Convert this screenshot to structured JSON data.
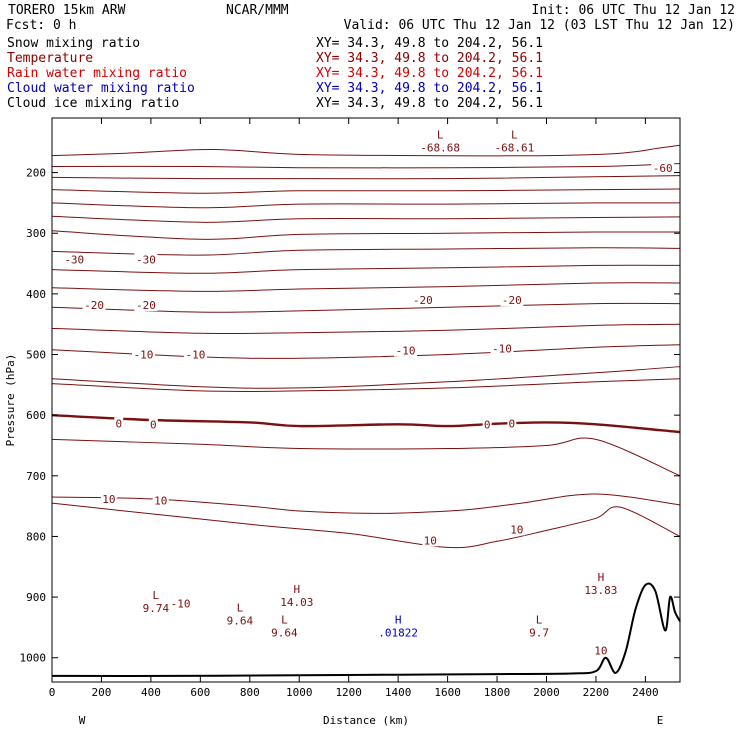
{
  "header": {
    "model": "TORERO  15km ARW",
    "center": "NCAR/MMM",
    "init": "Init: 06 UTC Thu 12 Jan 12",
    "fcst": "Fcst:    0 h",
    "valid": "Valid: 06 UTC Thu 12 Jan 12 (03 LST Thu 12 Jan 12)"
  },
  "fields": [
    {
      "name": "Snow mixing ratio",
      "xy": "XY=  34.3, 49.8 to 204.2, 56.1",
      "name_color": "#000000",
      "xy_color": "#000000"
    },
    {
      "name": "Temperature",
      "xy": "XY=  34.3, 49.8 to 204.2, 56.1",
      "name_color": "#8b0000",
      "xy_color": "#8b0000"
    },
    {
      "name": "Rain water mixing ratio",
      "xy": "XY=  34.3, 49.8 to 204.2, 56.1",
      "name_color": "#d40000",
      "xy_color": "#d40000"
    },
    {
      "name": "Cloud water mixing ratio",
      "xy": "XY=  34.3, 49.8 to 204.2, 56.1",
      "name_color": "#0000b4",
      "xy_color": "#0000b4"
    },
    {
      "name": "Cloud ice mixing ratio",
      "xy": "XY=  34.3, 49.8 to 204.2, 56.1",
      "name_color": "#000000",
      "xy_color": "#000000"
    }
  ],
  "colors": {
    "temperature": "#7a1010",
    "cloud_water": "#0000b4",
    "terrain": "#000000"
  },
  "chart_data": {
    "type": "line",
    "xlabel": "Distance (km)",
    "ylabel": "Pressure (hPa)",
    "xlim": [
      0,
      2540
    ],
    "ylim": [
      1040,
      110
    ],
    "xticks": [
      0,
      200,
      400,
      600,
      800,
      1000,
      1200,
      1400,
      1600,
      1800,
      2000,
      2200,
      2400
    ],
    "yticks": [
      200,
      300,
      400,
      500,
      600,
      700,
      800,
      900,
      1000
    ],
    "x_end_labels": {
      "left": "W",
      "right": "E"
    },
    "temperature_contours": [
      {
        "level": -65,
        "x": [
          0,
          300,
          650,
          1000,
          1500,
          2000,
          2300,
          2450,
          2540
        ],
        "p": [
          172,
          168,
          162,
          170,
          172,
          172,
          168,
          160,
          155
        ]
      },
      {
        "level": -60,
        "x": [
          0,
          600,
          1000,
          1600,
          2200,
          2540
        ],
        "p": [
          190,
          190,
          192,
          192,
          190,
          185
        ]
      },
      {
        "level": -55,
        "x": [
          0,
          600,
          1000,
          1600,
          2200,
          2540
        ],
        "p": [
          208,
          210,
          210,
          210,
          207,
          205
        ]
      },
      {
        "level": -50,
        "x": [
          0,
          600,
          1000,
          1600,
          2200,
          2540
        ],
        "p": [
          228,
          234,
          230,
          230,
          228,
          227
        ]
      },
      {
        "level": -45,
        "x": [
          0,
          600,
          1000,
          1600,
          2200,
          2540
        ],
        "p": [
          250,
          258,
          252,
          252,
          250,
          250
        ]
      },
      {
        "level": -40,
        "x": [
          0,
          600,
          1000,
          1600,
          2200,
          2540
        ],
        "p": [
          272,
          282,
          276,
          276,
          274,
          273
        ]
      },
      {
        "level": -35,
        "x": [
          0,
          600,
          1000,
          1600,
          2200,
          2540
        ],
        "p": [
          296,
          310,
          302,
          300,
          298,
          298
        ]
      },
      {
        "level": -30,
        "x": [
          0,
          600,
          1000,
          1600,
          2200,
          2540
        ],
        "p": [
          330,
          336,
          328,
          326,
          324,
          325
        ]
      },
      {
        "level": -25,
        "x": [
          0,
          600,
          1000,
          1600,
          2200,
          2540
        ],
        "p": [
          360,
          366,
          360,
          357,
          353,
          353
        ]
      },
      {
        "level": -20,
        "x": [
          0,
          600,
          1000,
          1600,
          2200,
          2540
        ],
        "p": [
          390,
          396,
          392,
          388,
          382,
          382
        ]
      },
      {
        "level": -15,
        "x": [
          0,
          600,
          1000,
          1600,
          2200,
          2540
        ],
        "p": [
          422,
          430,
          428,
          422,
          416,
          416
        ]
      },
      {
        "level": -10,
        "x": [
          0,
          600,
          1000,
          1600,
          2200,
          2540
        ],
        "p": [
          457,
          465,
          464,
          460,
          452,
          450
        ]
      },
      {
        "level": -5,
        "x": [
          0,
          600,
          1000,
          1600,
          2200,
          2540
        ],
        "p": [
          492,
          504,
          506,
          500,
          488,
          484
        ]
      },
      {
        "level": 0,
        "x": [
          0,
          600,
          1000,
          1600,
          2200,
          2540
        ],
        "p": [
          540,
          553,
          555,
          545,
          530,
          520
        ]
      },
      {
        "level": 5,
        "x": [
          0,
          600,
          1000,
          1600,
          2200,
          2540
        ],
        "p": [
          548,
          560,
          560,
          555,
          545,
          540
        ]
      },
      {
        "level": 10,
        "x": [
          0,
          400,
          800,
          1000,
          1400,
          1600,
          1800,
          2000,
          2200,
          2540
        ],
        "p": [
          600,
          608,
          612,
          618,
          615,
          618,
          614,
          612,
          615,
          628
        ]
      },
      {
        "level": 15,
        "x": [
          0,
          600,
          1000,
          1600,
          2000,
          2200,
          2540
        ],
        "p": [
          640,
          648,
          655,
          655,
          650,
          640,
          700
        ]
      },
      {
        "level": 20,
        "x": [
          0,
          400,
          800,
          1000,
          1300,
          1500,
          1700,
          1900,
          2200,
          2540
        ],
        "p": [
          735,
          738,
          750,
          758,
          762,
          760,
          755,
          745,
          730,
          748
        ]
      },
      {
        "level": 25,
        "x": [
          0,
          800,
          1200,
          1600,
          1800,
          2000,
          2200,
          2300,
          2540
        ],
        "p": [
          745,
          780,
          795,
          818,
          808,
          790,
          770,
          752,
          800
        ]
      }
    ],
    "labels": [
      {
        "text": "-60",
        "x": 2470,
        "p": 194
      },
      {
        "text": "-30",
        "x": 90,
        "p": 345
      },
      {
        "text": "-30",
        "x": 380,
        "p": 345
      },
      {
        "text": "-20",
        "x": 170,
        "p": 420
      },
      {
        "text": "-20",
        "x": 380,
        "p": 420
      },
      {
        "text": "-20",
        "x": 1500,
        "p": 412
      },
      {
        "text": "-20",
        "x": 1860,
        "p": 412
      },
      {
        "text": "-10",
        "x": 370,
        "p": 502
      },
      {
        "text": "-10",
        "x": 580,
        "p": 502
      },
      {
        "text": "-10",
        "x": 1430,
        "p": 495
      },
      {
        "text": "-10",
        "x": 1820,
        "p": 492
      },
      {
        "text": "0",
        "x": 270,
        "p": 615
      },
      {
        "text": "0",
        "x": 410,
        "p": 617
      },
      {
        "text": "0",
        "x": 1760,
        "p": 617
      },
      {
        "text": "0",
        "x": 1860,
        "p": 615
      },
      {
        "text": "10",
        "x": 230,
        "p": 740
      },
      {
        "text": "10",
        "x": 440,
        "p": 742
      },
      {
        "text": "10",
        "x": 1530,
        "p": 808
      },
      {
        "text": "10",
        "x": 1880,
        "p": 790
      },
      {
        "text": "-10",
        "x": 520,
        "p": 912
      },
      {
        "text": "10",
        "x": 2220,
        "p": 990
      }
    ],
    "extrema": [
      {
        "type": "L",
        "value": "-68.68",
        "x": 1570,
        "p": 150
      },
      {
        "type": "L",
        "value": "-68.61",
        "x": 1870,
        "p": 150
      },
      {
        "type": "H",
        "value": "13.83",
        "x": 2220,
        "p": 880
      },
      {
        "type": "H",
        "value": "14.03",
        "x": 990,
        "p": 900
      },
      {
        "type": "L",
        "value": "9.74",
        "x": 420,
        "p": 910
      },
      {
        "type": "L",
        "value": "9.64",
        "x": 760,
        "p": 930
      },
      {
        "type": "L",
        "value": "9.64",
        "x": 940,
        "p": 950
      },
      {
        "type": "L",
        "value": "9.7",
        "x": 1970,
        "p": 950
      }
    ],
    "cloud_water_extrema": [
      {
        "type": "H",
        "value": ".01822",
        "x": 1400,
        "p": 950
      }
    ],
    "terrain": {
      "x": [
        0,
        500,
        1000,
        1400,
        1800,
        2100,
        2200,
        2240,
        2280,
        2320,
        2360,
        2400,
        2440,
        2480,
        2500,
        2520,
        2540
      ],
      "p": [
        1030,
        1030,
        1029,
        1028,
        1027,
        1026,
        1022,
        1000,
        1025,
        990,
        920,
        880,
        890,
        955,
        900,
        925,
        940
      ]
    }
  }
}
